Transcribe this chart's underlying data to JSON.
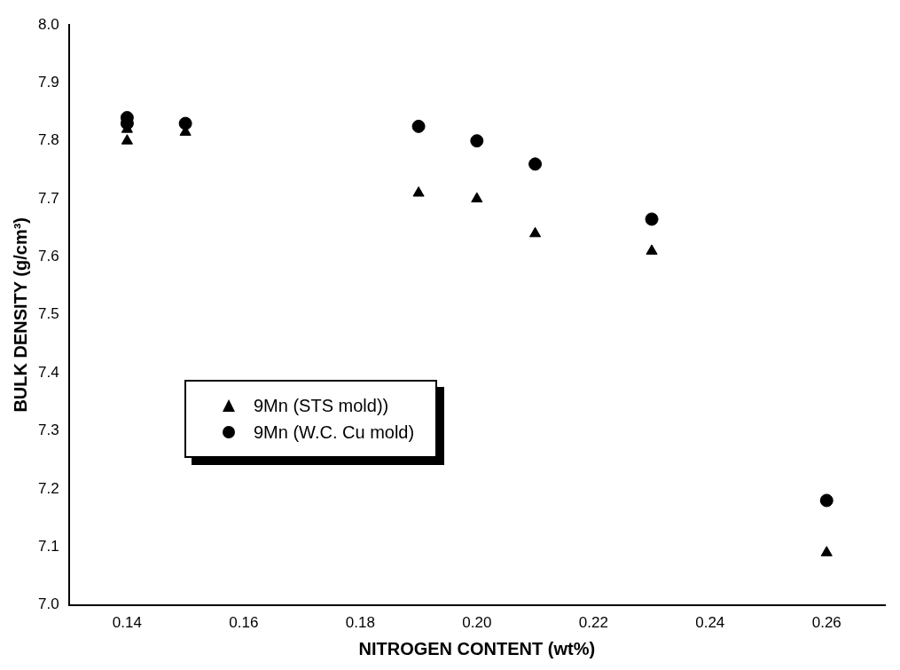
{
  "chart_data": {
    "type": "scatter",
    "xlabel": "NITROGEN CONTENT (wt%)",
    "ylabel": "BULK DENSITY (g/cm³)",
    "xlim": [
      0.13,
      0.27
    ],
    "xticks": [
      0.14,
      0.16,
      0.18,
      {
        "value": 0.2,
        "label": "0.20"
      },
      0.22,
      0.24,
      0.26
    ],
    "ylim": [
      7,
      8
    ],
    "yticks": [
      {
        "value": 7,
        "label": "7.0"
      },
      7.1,
      7.2,
      7.3,
      7.4,
      7.5,
      7.6,
      7.7,
      7.8,
      7.9,
      {
        "value": 8,
        "label": "8.0"
      }
    ],
    "grid": false,
    "legend": "left",
    "series": [
      {
        "name": "9Mn (STS mold))",
        "color": "#000000",
        "marker": "triangle",
        "x": [
          0.14,
          0.14,
          0.15,
          0.19,
          0.2,
          0.21,
          0.23,
          0.26
        ],
        "values": [
          7.82,
          7.8,
          7.815,
          7.71,
          7.7,
          7.64,
          7.61,
          7.09
        ]
      },
      {
        "name": "9Mn (W.C. Cu mold)",
        "color": "#000000",
        "marker": "circle",
        "x": [
          0.14,
          0.14,
          0.15,
          0.19,
          0.2,
          0.21,
          0.23,
          0.26
        ],
        "values": [
          7.84,
          7.83,
          7.83,
          7.825,
          7.8,
          7.76,
          7.665,
          7.18
        ]
      }
    ]
  }
}
